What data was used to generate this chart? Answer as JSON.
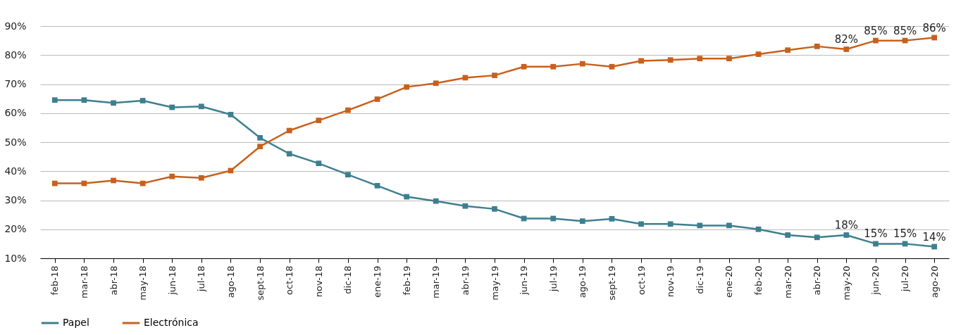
{
  "chart_data": {
    "type": "line",
    "categories": [
      "feb-18",
      "mar-18",
      "abr-18",
      "may-18",
      "jun-18",
      "jul-18",
      "ago-18",
      "sept-18",
      "oct-18",
      "nov-18",
      "dic-18",
      "ene-19",
      "feb-19",
      "mar-19",
      "abr-19",
      "may-19",
      "jun-19",
      "jul-19",
      "ago-19",
      "sept-19",
      "oct-19",
      "nov-19",
      "dic-19",
      "ene-20",
      "feb-20",
      "mar-20",
      "abr-20",
      "may-20",
      "jun-20",
      "jul-20",
      "ago-20"
    ],
    "series": [
      {
        "name": "Papel",
        "color": "#3d7f8f",
        "values": [
          64.5,
          64.5,
          63.5,
          64.3,
          62,
          62.3,
          59.5,
          51.5,
          46,
          42.7,
          38.8,
          35,
          31.2,
          29.7,
          28,
          27,
          23.7,
          23.7,
          22.8,
          23.6,
          21.8,
          21.8,
          21.3,
          21.3,
          20,
          18,
          17.2,
          18,
          15,
          15,
          14
        ],
        "value_labels": [
          null,
          null,
          null,
          null,
          null,
          null,
          null,
          null,
          null,
          null,
          null,
          null,
          null,
          null,
          null,
          null,
          null,
          null,
          null,
          null,
          null,
          null,
          null,
          null,
          null,
          null,
          null,
          "18%",
          "15%",
          "15%",
          "14%"
        ]
      },
      {
        "name": "Electrónica",
        "color": "#c8601c",
        "values": [
          35.8,
          35.8,
          36.8,
          35.8,
          38.2,
          37.7,
          40.2,
          48.5,
          54,
          57.5,
          61,
          64.8,
          69,
          70.3,
          72.2,
          73,
          76,
          76,
          77,
          76,
          78,
          78.3,
          78.8,
          78.8,
          80.3,
          81.7,
          83,
          82,
          85,
          85,
          86
        ],
        "value_labels": [
          null,
          null,
          null,
          null,
          null,
          null,
          null,
          null,
          null,
          null,
          null,
          null,
          null,
          null,
          null,
          null,
          null,
          null,
          null,
          null,
          null,
          null,
          null,
          null,
          null,
          null,
          null,
          "82%",
          "85%",
          "85%",
          "86%"
        ]
      }
    ],
    "ylim": [
      10,
      90
    ],
    "yticks": [
      {
        "value": 10,
        "label": "10%"
      },
      {
        "value": 20,
        "label": "20%"
      },
      {
        "value": 30,
        "label": "30%"
      },
      {
        "value": 40,
        "label": "40%"
      },
      {
        "value": 50,
        "label": "50%"
      },
      {
        "value": 60,
        "label": "60%"
      },
      {
        "value": 70,
        "label": "70%"
      },
      {
        "value": 80,
        "label": "80%"
      },
      {
        "value": 90,
        "label": "90%"
      }
    ],
    "grid": "y",
    "legend": "bottom",
    "marker": "square",
    "line_style": "solid"
  }
}
